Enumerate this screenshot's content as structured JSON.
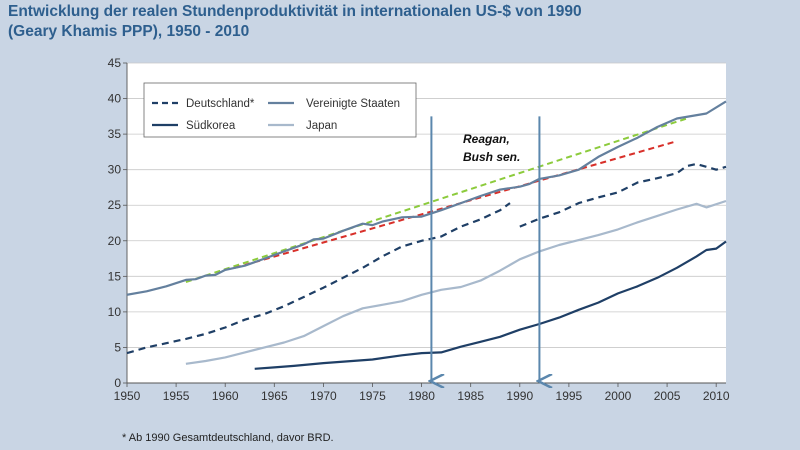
{
  "title": {
    "line1": "Entwicklung der realen Stundenproduktivität in internationalen US-$ von 1990",
    "line2": "(Geary Khamis PPP), 1950 - 2010"
  },
  "footnote": "* Ab 1990 Gesamtdeutschland, davor BRD.",
  "annotation": {
    "line1": "Reagan,",
    "line2": "Bush sen."
  },
  "chart_data": {
    "type": "line",
    "title": "Entwicklung der realen Stundenproduktivität in internationalen US-$ von 1990 (Geary Khamis PPP), 1950 - 2010",
    "xlabel": "",
    "ylabel": "",
    "xlim": [
      1950,
      2011
    ],
    "ylim": [
      0,
      45
    ],
    "xticks": [
      1950,
      1955,
      1960,
      1965,
      1970,
      1975,
      1980,
      1985,
      1990,
      1995,
      2000,
      2005,
      2010
    ],
    "yticks": [
      0,
      5,
      10,
      15,
      20,
      25,
      30,
      35,
      40,
      45
    ],
    "grid": "horizontal",
    "legend_position": "top-left",
    "series": [
      {
        "name": "Deutschland*",
        "color": "#1f3f66",
        "style": "dashed",
        "segments": [
          [
            [
              1950,
              4.2
            ],
            [
              1952,
              5.0
            ],
            [
              1954,
              5.6
            ],
            [
              1956,
              6.2
            ],
            [
              1958,
              6.9
            ],
            [
              1960,
              7.8
            ],
            [
              1962,
              8.9
            ],
            [
              1964,
              9.7
            ],
            [
              1966,
              10.8
            ],
            [
              1968,
              12.1
            ],
            [
              1970,
              13.4
            ],
            [
              1972,
              14.8
            ],
            [
              1974,
              16.2
            ],
            [
              1976,
              17.8
            ],
            [
              1978,
              19.2
            ],
            [
              1980,
              20.0
            ],
            [
              1982,
              20.6
            ],
            [
              1984,
              22.0
            ],
            [
              1986,
              23.0
            ],
            [
              1988,
              24.3
            ],
            [
              1989,
              25.3
            ]
          ],
          [
            [
              1990,
              22.0
            ],
            [
              1992,
              23.1
            ],
            [
              1994,
              24.0
            ],
            [
              1996,
              25.3
            ],
            [
              1998,
              26.1
            ],
            [
              2000,
              26.8
            ],
            [
              2002,
              28.2
            ],
            [
              2004,
              28.8
            ],
            [
              2006,
              29.5
            ],
            [
              2007,
              30.5
            ],
            [
              2008,
              30.8
            ],
            [
              2009,
              30.4
            ],
            [
              2010,
              30.0
            ],
            [
              2011,
              30.4
            ]
          ]
        ]
      },
      {
        "name": "Vereinigte Staaten",
        "color": "#64809e",
        "style": "solid",
        "segments": [
          [
            [
              1950,
              12.4
            ],
            [
              1952,
              12.9
            ],
            [
              1954,
              13.6
            ],
            [
              1956,
              14.5
            ],
            [
              1957,
              14.6
            ],
            [
              1958,
              15.1
            ],
            [
              1959,
              15.2
            ],
            [
              1960,
              15.9
            ],
            [
              1962,
              16.5
            ],
            [
              1964,
              17.5
            ],
            [
              1966,
              18.5
            ],
            [
              1968,
              19.5
            ],
            [
              1969,
              20.2
            ],
            [
              1970,
              20.3
            ],
            [
              1972,
              21.4
            ],
            [
              1974,
              22.4
            ],
            [
              1975,
              22.2
            ],
            [
              1976,
              22.7
            ],
            [
              1978,
              23.3
            ],
            [
              1980,
              23.4
            ],
            [
              1982,
              24.3
            ],
            [
              1984,
              25.3
            ],
            [
              1986,
              26.3
            ],
            [
              1988,
              27.2
            ],
            [
              1990,
              27.6
            ],
            [
              1991,
              28.0
            ],
            [
              1992,
              28.7
            ],
            [
              1994,
              29.2
            ],
            [
              1996,
              30.0
            ],
            [
              1998,
              31.8
            ],
            [
              2000,
              33.2
            ],
            [
              2002,
              34.5
            ],
            [
              2004,
              36.0
            ],
            [
              2006,
              37.2
            ],
            [
              2009,
              37.9
            ],
            [
              2011,
              39.6
            ]
          ]
        ]
      },
      {
        "name": "Südkorea",
        "color": "#1f3f66",
        "style": "solid",
        "segments": [
          [
            [
              1963,
              2.0
            ],
            [
              1965,
              2.2
            ],
            [
              1967,
              2.4
            ],
            [
              1970,
              2.8
            ],
            [
              1975,
              3.3
            ],
            [
              1978,
              3.9
            ],
            [
              1980,
              4.2
            ],
            [
              1982,
              4.3
            ],
            [
              1984,
              5.1
            ],
            [
              1986,
              5.8
            ],
            [
              1988,
              6.5
            ],
            [
              1990,
              7.5
            ],
            [
              1992,
              8.3
            ],
            [
              1994,
              9.2
            ],
            [
              1996,
              10.3
            ],
            [
              1998,
              11.3
            ],
            [
              2000,
              12.6
            ],
            [
              2002,
              13.6
            ],
            [
              2004,
              14.8
            ],
            [
              2006,
              16.2
            ],
            [
              2008,
              17.8
            ],
            [
              2009,
              18.7
            ],
            [
              2010,
              18.9
            ],
            [
              2011,
              19.9
            ]
          ]
        ]
      },
      {
        "name": "Japan",
        "color": "#a8b9cc",
        "style": "solid",
        "segments": [
          [
            [
              1956,
              2.7
            ],
            [
              1958,
              3.1
            ],
            [
              1960,
              3.6
            ],
            [
              1962,
              4.3
            ],
            [
              1964,
              5.0
            ],
            [
              1966,
              5.7
            ],
            [
              1968,
              6.6
            ],
            [
              1970,
              8.0
            ],
            [
              1972,
              9.4
            ],
            [
              1974,
              10.5
            ],
            [
              1976,
              11.0
            ],
            [
              1978,
              11.5
            ],
            [
              1980,
              12.4
            ],
            [
              1982,
              13.1
            ],
            [
              1984,
              13.5
            ],
            [
              1986,
              14.4
            ],
            [
              1988,
              15.8
            ],
            [
              1990,
              17.4
            ],
            [
              1992,
              18.5
            ],
            [
              1994,
              19.4
            ],
            [
              1996,
              20.1
            ],
            [
              1998,
              20.8
            ],
            [
              2000,
              21.6
            ],
            [
              2002,
              22.6
            ],
            [
              2004,
              23.5
            ],
            [
              2006,
              24.4
            ],
            [
              2008,
              25.2
            ],
            [
              2009,
              24.7
            ],
            [
              2011,
              25.6
            ]
          ]
        ]
      }
    ],
    "trend_lines": [
      {
        "color": "#8ccb3c",
        "style": "dashed",
        "points": [
          [
            1956,
            14.2
          ],
          [
            2007,
            37.2
          ]
        ]
      },
      {
        "color": "#d8302a",
        "style": "dashed",
        "points": [
          [
            1961,
            16.2
          ],
          [
            2006,
            34.0
          ]
        ]
      }
    ],
    "markers": [
      {
        "type": "arrow",
        "color": "#5b87ad",
        "x": 1981,
        "from_y": 37.5,
        "to_y": 0
      },
      {
        "type": "arrow",
        "color": "#5b87ad",
        "x": 1992,
        "from_y": 37.5,
        "to_y": 0
      }
    ]
  }
}
